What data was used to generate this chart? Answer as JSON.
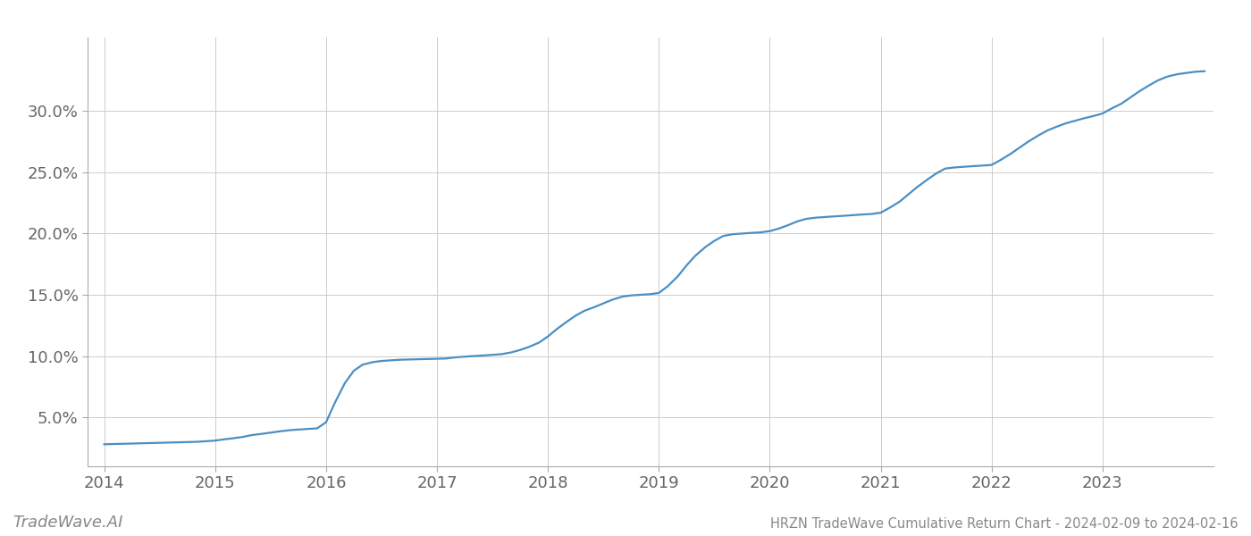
{
  "title": "HRZN TradeWave Cumulative Return Chart - 2024-02-09 to 2024-02-16",
  "watermark": "TradeWave.AI",
  "line_color": "#4a8fc4",
  "background_color": "#ffffff",
  "grid_color": "#cccccc",
  "x_values": [
    2014.0,
    2014.08,
    2014.17,
    2014.25,
    2014.33,
    2014.42,
    2014.5,
    2014.58,
    2014.67,
    2014.75,
    2014.83,
    2014.92,
    2015.0,
    2015.08,
    2015.17,
    2015.25,
    2015.33,
    2015.42,
    2015.5,
    2015.58,
    2015.67,
    2015.75,
    2015.83,
    2015.92,
    2016.0,
    2016.08,
    2016.17,
    2016.25,
    2016.33,
    2016.42,
    2016.5,
    2016.58,
    2016.67,
    2016.75,
    2016.83,
    2016.92,
    2017.0,
    2017.08,
    2017.17,
    2017.25,
    2017.33,
    2017.42,
    2017.5,
    2017.58,
    2017.67,
    2017.75,
    2017.83,
    2017.92,
    2018.0,
    2018.08,
    2018.17,
    2018.25,
    2018.33,
    2018.42,
    2018.5,
    2018.58,
    2018.67,
    2018.75,
    2018.83,
    2018.92,
    2019.0,
    2019.08,
    2019.17,
    2019.25,
    2019.33,
    2019.42,
    2019.5,
    2019.58,
    2019.67,
    2019.75,
    2019.83,
    2019.92,
    2020.0,
    2020.08,
    2020.17,
    2020.25,
    2020.33,
    2020.42,
    2020.5,
    2020.58,
    2020.67,
    2020.75,
    2020.83,
    2020.92,
    2021.0,
    2021.08,
    2021.17,
    2021.25,
    2021.33,
    2021.42,
    2021.5,
    2021.58,
    2021.67,
    2021.75,
    2021.83,
    2021.92,
    2022.0,
    2022.08,
    2022.17,
    2022.25,
    2022.33,
    2022.42,
    2022.5,
    2022.58,
    2022.67,
    2022.75,
    2022.83,
    2022.92,
    2023.0,
    2023.08,
    2023.17,
    2023.25,
    2023.33,
    2023.42,
    2023.5,
    2023.58,
    2023.67,
    2023.75,
    2023.83,
    2023.92
  ],
  "y_values": [
    2.8,
    2.82,
    2.84,
    2.86,
    2.88,
    2.9,
    2.92,
    2.94,
    2.96,
    2.98,
    3.0,
    3.05,
    3.1,
    3.2,
    3.3,
    3.4,
    3.55,
    3.65,
    3.75,
    3.85,
    3.95,
    4.0,
    4.05,
    4.1,
    4.6,
    6.2,
    7.8,
    8.8,
    9.3,
    9.5,
    9.6,
    9.65,
    9.7,
    9.72,
    9.74,
    9.76,
    9.78,
    9.8,
    9.9,
    9.95,
    10.0,
    10.05,
    10.1,
    10.15,
    10.3,
    10.5,
    10.75,
    11.1,
    11.6,
    12.2,
    12.8,
    13.3,
    13.7,
    14.0,
    14.3,
    14.6,
    14.85,
    14.95,
    15.0,
    15.05,
    15.15,
    15.7,
    16.5,
    17.4,
    18.2,
    18.9,
    19.4,
    19.8,
    19.95,
    20.0,
    20.05,
    20.1,
    20.2,
    20.4,
    20.7,
    21.0,
    21.2,
    21.3,
    21.35,
    21.4,
    21.45,
    21.5,
    21.55,
    21.6,
    21.7,
    22.1,
    22.6,
    23.2,
    23.8,
    24.4,
    24.9,
    25.3,
    25.4,
    25.45,
    25.5,
    25.55,
    25.6,
    26.0,
    26.5,
    27.0,
    27.5,
    28.0,
    28.4,
    28.7,
    29.0,
    29.2,
    29.4,
    29.6,
    29.8,
    30.2,
    30.6,
    31.1,
    31.6,
    32.1,
    32.5,
    32.8,
    33.0,
    33.1,
    33.2,
    33.25
  ],
  "yticks": [
    5.0,
    10.0,
    15.0,
    20.0,
    25.0,
    30.0
  ],
  "xticks": [
    2014,
    2015,
    2016,
    2017,
    2018,
    2019,
    2020,
    2021,
    2022,
    2023
  ],
  "xlim": [
    2013.85,
    2024.0
  ],
  "ylim": [
    1.0,
    36.0
  ],
  "line_width": 1.6,
  "title_fontsize": 10.5,
  "tick_fontsize": 13,
  "watermark_fontsize": 13
}
